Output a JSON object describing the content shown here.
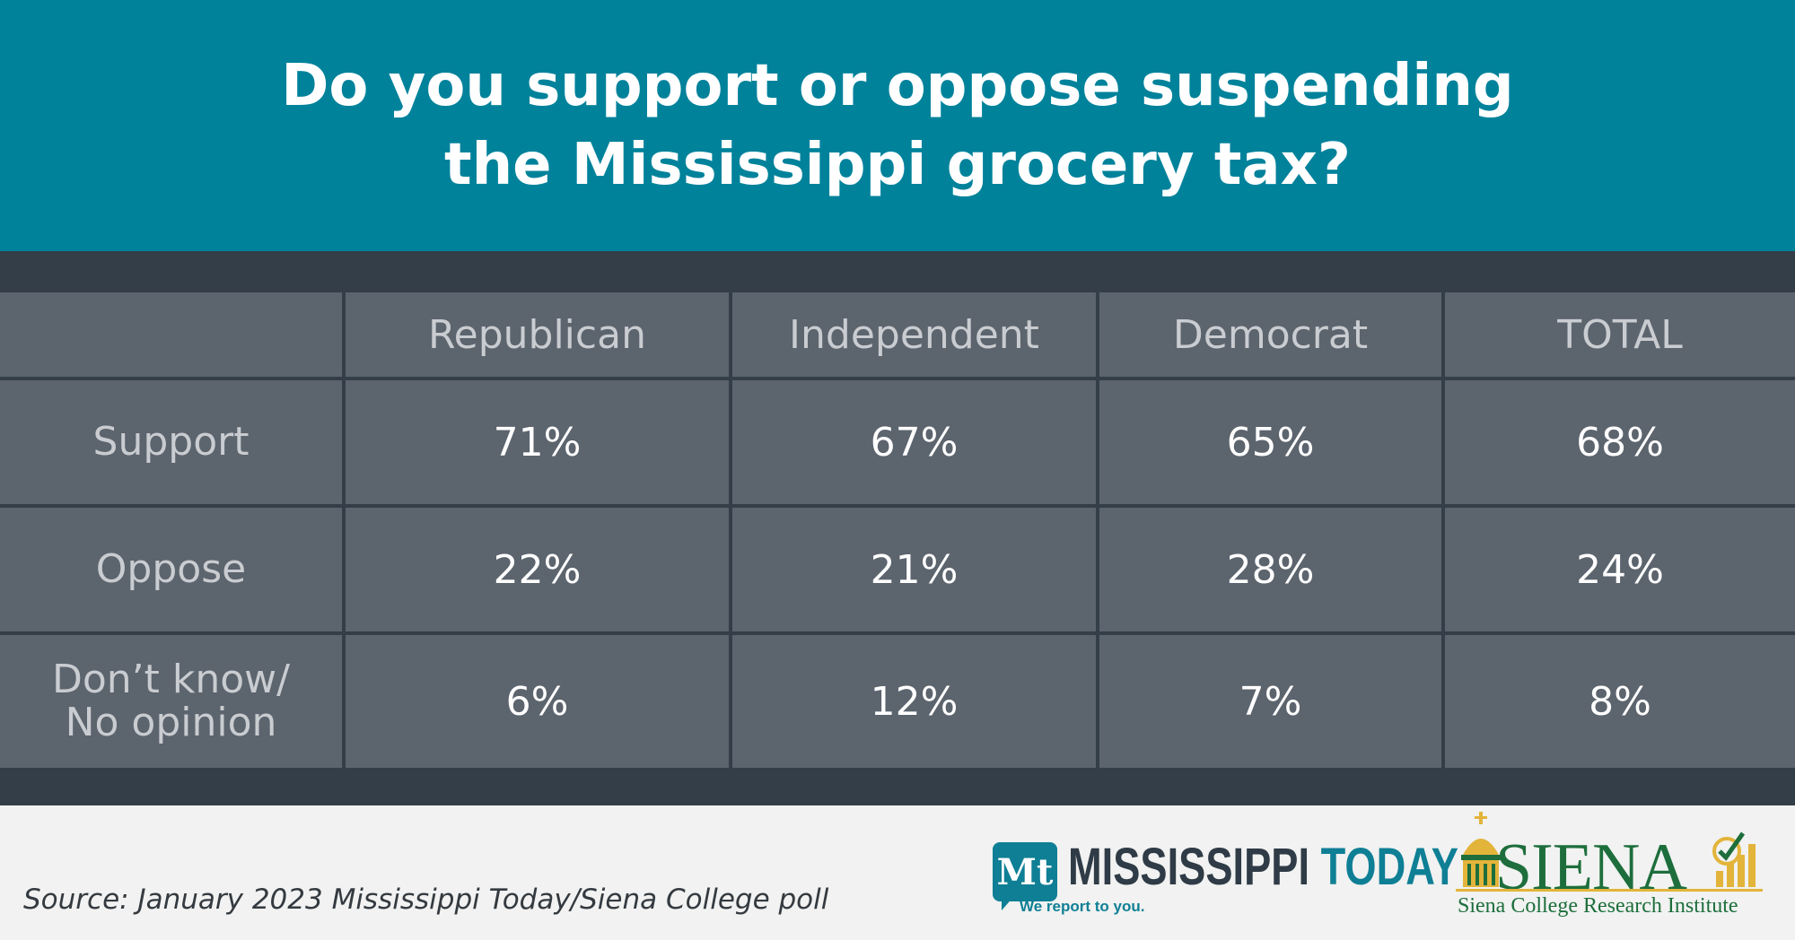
{
  "header": {
    "title_line1": "Do you support or oppose suspending",
    "title_line2": "the Mississippi grocery tax?"
  },
  "chart_data": {
    "type": "table",
    "title": "Do you support or oppose suspending the Mississippi grocery tax?",
    "columns": [
      "Republican",
      "Independent",
      "Democrat",
      "TOTAL"
    ],
    "rows": [
      {
        "label": "Support",
        "values": [
          "71%",
          "67%",
          "65%",
          "68%"
        ]
      },
      {
        "label": "Oppose",
        "values": [
          "22%",
          "21%",
          "28%",
          "24%"
        ]
      },
      {
        "label_line1": "Don’t know/",
        "label_line2": "No opinion",
        "values": [
          "6%",
          "12%",
          "7%",
          "8%"
        ]
      }
    ]
  },
  "footer": {
    "source": "Source: January 2023 Mississippi Today/Siena College poll",
    "mt_badge": "Mt",
    "mt_name_a": "MISSISSIPPI",
    "mt_name_b": "TODAY",
    "mt_tagline": "We report to you.",
    "siena_word": "SIENA",
    "siena_sub": "Siena College Research Institute"
  },
  "colors": {
    "header_bg": "#00829b",
    "band_bg": "#333e48",
    "cell_bg": "#5c646e",
    "footer_bg": "#f1f2f1",
    "siena_green": "#1d6e3c",
    "siena_gold": "#e3b43a"
  }
}
